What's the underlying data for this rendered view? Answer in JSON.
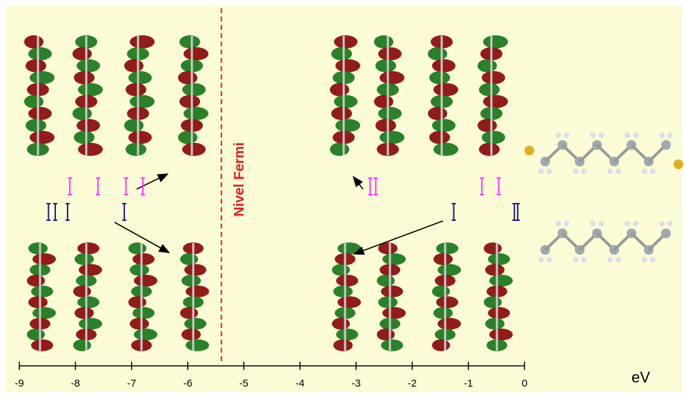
{
  "chart_data": {
    "type": "levels",
    "x_label": "eV",
    "xlim": [
      -9,
      0
    ],
    "xticks": [
      -9,
      -8,
      -7,
      -6,
      -5,
      -4,
      -3,
      -2,
      -1,
      0
    ],
    "fermi_level": -5.4,
    "fermi_label": "Nivel Fermi",
    "series": [
      {
        "color": "#ff33ff",
        "values": [
          -8.1,
          -7.6,
          -7.1,
          -6.8,
          -2.75,
          -2.65,
          -0.76,
          -0.46
        ]
      },
      {
        "color": "#1a1a80",
        "values": [
          -8.48,
          -8.36,
          -8.14,
          -7.13,
          -1.26,
          -0.18,
          -0.12
        ]
      }
    ]
  }
}
